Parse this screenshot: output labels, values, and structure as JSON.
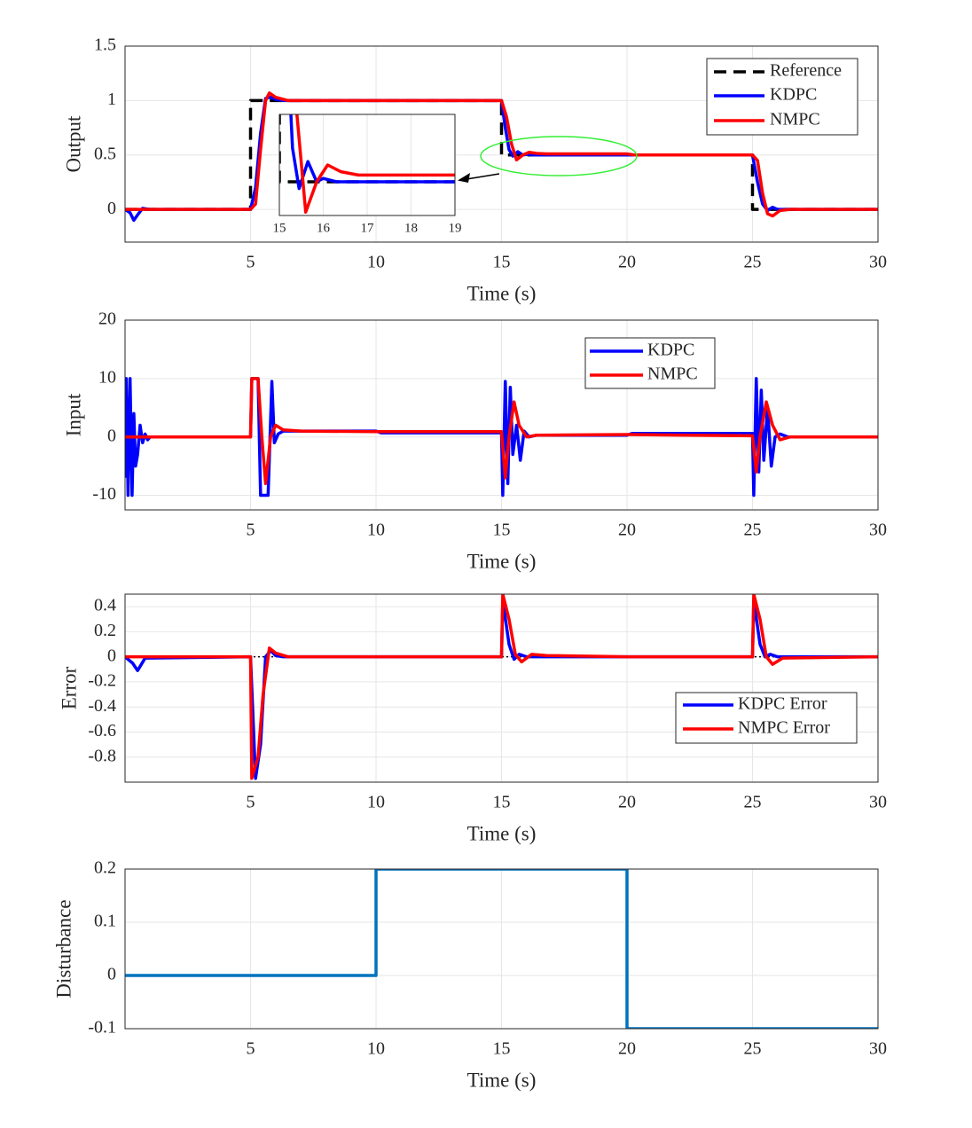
{
  "chart_data": [
    {
      "type": "line",
      "ylabel": "Output",
      "xlabel": "Time (s)",
      "xlim": [
        0,
        30
      ],
      "ylim": [
        -0.3,
        1.5
      ],
      "xticks": [
        5,
        10,
        15,
        20,
        25,
        30
      ],
      "yticks": [
        0,
        0.5,
        1,
        1.5
      ],
      "grid": true,
      "series": [
        {
          "name": "Reference",
          "color": "#000000",
          "style": "dashed",
          "x": [
            0,
            5,
            5,
            15,
            15,
            25,
            25,
            30
          ],
          "values": [
            0,
            0,
            1,
            1,
            0.5,
            0.5,
            0,
            0
          ]
        },
        {
          "name": "KDPC",
          "color": "#0000ff",
          "x": [
            0,
            0.2,
            0.35,
            0.5,
            0.7,
            1,
            5,
            5.2,
            5.4,
            5.6,
            5.8,
            6,
            6.3,
            7,
            10,
            15,
            15.15,
            15.3,
            15.45,
            15.65,
            15.85,
            16,
            16.3,
            20,
            25,
            25.2,
            25.4,
            25.6,
            25.8,
            26,
            30
          ],
          "values": [
            0,
            -0.03,
            -0.1,
            -0.05,
            0.01,
            0,
            0,
            0.2,
            0.7,
            1.02,
            1.03,
            1.01,
            1,
            1,
            1,
            1,
            0.75,
            0.55,
            0.49,
            0.53,
            0.5,
            0.505,
            0.5,
            0.5,
            0.5,
            0.25,
            0.05,
            -0.01,
            0.02,
            0,
            0
          ]
        },
        {
          "name": "NMPC",
          "color": "#ff0000",
          "x": [
            0,
            5,
            5.2,
            5.4,
            5.6,
            5.75,
            6,
            6.5,
            7,
            15,
            15.2,
            15.4,
            15.6,
            15.85,
            16.1,
            16.4,
            16.8,
            20,
            20.3,
            25,
            25.2,
            25.4,
            25.6,
            25.8,
            26.1,
            26.5,
            30
          ],
          "values": [
            0,
            0,
            0.05,
            0.55,
            1,
            1.07,
            1.03,
            1,
            1,
            1,
            0.85,
            0.6,
            0.455,
            0.5,
            0.525,
            0.515,
            0.51,
            0.51,
            0.5,
            0.5,
            0.45,
            0.15,
            -0.04,
            -0.06,
            -0.01,
            0,
            0
          ]
        }
      ],
      "inset": {
        "xlim": [
          15,
          19
        ],
        "ylim": [
          0.45,
          0.6
        ],
        "xticks": [
          15,
          16,
          17,
          18,
          19
        ]
      }
    },
    {
      "type": "line",
      "ylabel": "Input",
      "xlabel": "Time (s)",
      "xlim": [
        0,
        30
      ],
      "ylim": [
        -12.5,
        20
      ],
      "xticks": [
        5,
        10,
        15,
        20,
        25,
        30
      ],
      "yticks": [
        -10,
        0,
        10,
        20
      ],
      "grid": true,
      "series": [
        {
          "name": "KDPC",
          "color": "#0000ff",
          "x": [
            0,
            0.05,
            0.12,
            0.2,
            0.28,
            0.35,
            0.42,
            0.5,
            0.6,
            0.7,
            0.8,
            0.9,
            1,
            1.2,
            1.4,
            5,
            5.05,
            5.3,
            5.4,
            5.5,
            5.7,
            5.85,
            5.95,
            6.1,
            6.3,
            7,
            10,
            10.2,
            15,
            15.05,
            15.15,
            15.25,
            15.35,
            15.45,
            15.6,
            15.75,
            15.9,
            16.1,
            16.4,
            20,
            20.2,
            25,
            25.05,
            25.15,
            25.25,
            25.35,
            25.45,
            25.6,
            25.75,
            25.9,
            26.1,
            26.4,
            30
          ],
          "values": [
            -7,
            10,
            -10,
            10,
            -10,
            4,
            -5,
            -3,
            2,
            -1,
            0.5,
            -0.5,
            0,
            0,
            0,
            0,
            10,
            10,
            -10,
            -10,
            -10,
            9.5,
            -1,
            0.5,
            1,
            1,
            1,
            0.7,
            0.7,
            -10,
            9.5,
            -8,
            8.5,
            -3,
            2,
            -4,
            1,
            0,
            0.3,
            0.3,
            0.6,
            0.6,
            -10,
            10,
            -6,
            8,
            -4,
            5,
            -5,
            0,
            0.5,
            0,
            0
          ]
        },
        {
          "name": "NMPC",
          "color": "#ff0000",
          "x": [
            0,
            5,
            5.05,
            5.3,
            5.45,
            5.6,
            5.8,
            6,
            6.3,
            7,
            10,
            15,
            15.15,
            15.3,
            15.5,
            15.7,
            16,
            16.4,
            20,
            25,
            25.15,
            25.3,
            25.55,
            25.8,
            26.1,
            26.5,
            30
          ],
          "values": [
            0,
            0,
            10,
            10,
            0,
            -8,
            0,
            2,
            1.2,
            1,
            0.9,
            0.9,
            -7,
            0,
            6,
            2,
            0,
            0.3,
            0.4,
            0.2,
            -6,
            0,
            6,
            2,
            -0.5,
            0,
            0
          ]
        }
      ]
    },
    {
      "type": "line",
      "ylabel": "Error",
      "xlabel": "Time (s)",
      "xlim": [
        0,
        30
      ],
      "ylim": [
        -1,
        0.5
      ],
      "xticks": [
        5,
        10,
        15,
        20,
        25,
        30
      ],
      "yticks": [
        -0.8,
        -0.6,
        -0.4,
        -0.2,
        0,
        0.2,
        0.4
      ],
      "grid": true,
      "hline": {
        "value": 0,
        "color": "#000000",
        "style": "dotted"
      },
      "series": [
        {
          "name": "KDPC Error",
          "color": "#0000ff",
          "x": [
            0,
            0.3,
            0.5,
            0.8,
            5,
            5.2,
            5.4,
            5.6,
            5.8,
            6,
            6.3,
            10,
            15,
            15.05,
            15.3,
            15.5,
            15.7,
            16,
            16.4,
            25,
            25.05,
            25.3,
            25.5,
            25.7,
            26,
            30
          ],
          "values": [
            0,
            -0.05,
            -0.11,
            -0.01,
            0,
            -0.97,
            -0.7,
            0,
            0.05,
            0.01,
            0,
            0,
            0,
            0.45,
            0.1,
            -0.02,
            0.02,
            0,
            0,
            0,
            0.45,
            0.1,
            0,
            0.02,
            0,
            0
          ]
        },
        {
          "name": "NMPC Error",
          "color": "#ff0000",
          "x": [
            0,
            5,
            5.05,
            5.3,
            5.5,
            5.75,
            6,
            6.5,
            15,
            15.05,
            15.3,
            15.55,
            15.8,
            16.2,
            16.8,
            20,
            25,
            25.05,
            25.3,
            25.55,
            25.8,
            26.2,
            30
          ],
          "values": [
            0,
            0,
            -0.97,
            -0.8,
            -0.3,
            0.07,
            0.03,
            0,
            0,
            0.5,
            0.3,
            0.02,
            -0.04,
            0.02,
            0.01,
            0,
            0,
            0.5,
            0.3,
            0,
            -0.06,
            -0.01,
            0
          ]
        }
      ]
    },
    {
      "type": "line",
      "ylabel": "Disturbance",
      "xlabel": "Time (s)",
      "xlim": [
        0,
        30
      ],
      "ylim": [
        -0.1,
        0.2
      ],
      "xticks": [
        5,
        10,
        15,
        20,
        25,
        30
      ],
      "yticks": [
        -0.1,
        0,
        0.1,
        0.2
      ],
      "grid": true,
      "series": [
        {
          "color": "#0072bd",
          "x": [
            0,
            10,
            10,
            20,
            20,
            30
          ],
          "values": [
            0,
            0,
            0.2,
            0.2,
            -0.1,
            -0.1
          ]
        }
      ]
    }
  ]
}
